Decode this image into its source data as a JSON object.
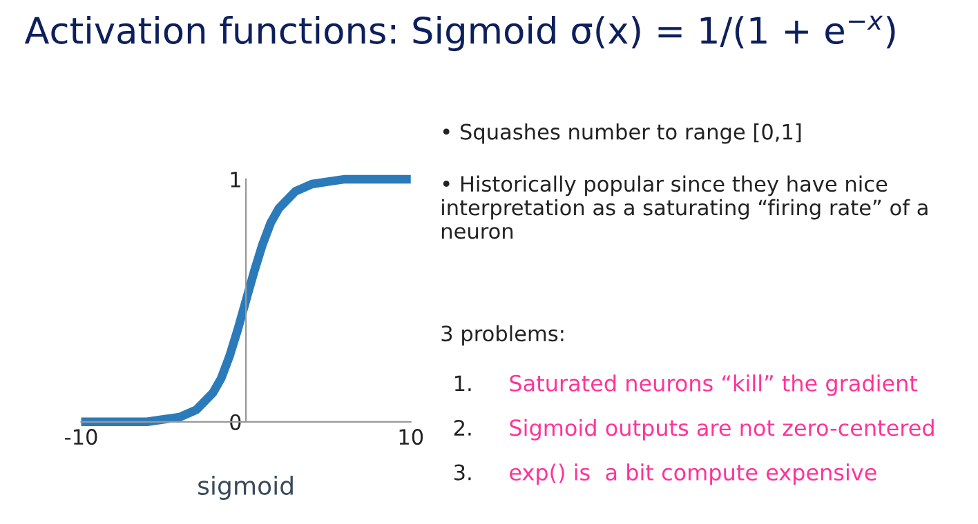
{
  "chart_data": {
    "type": "line",
    "title": "Activation functions: Sigmoid σ(x) = 1/(1 + e$^{−x}$)",
    "xlabel": "sigmoid",
    "x": [
      -10,
      -8,
      -6,
      -5,
      -4,
      -3,
      -2,
      -1.5,
      -1,
      -0.5,
      0,
      0.5,
      1,
      1.5,
      2,
      3,
      4,
      5,
      6,
      8,
      10
    ],
    "series": [
      {
        "color": "#2b7bba",
        "values": [
          0,
          0,
          0,
          0.01,
          0.02,
          0.05,
          0.12,
          0.18,
          0.27,
          0.38,
          0.5,
          0.62,
          0.73,
          0.82,
          0.88,
          0.95,
          0.98,
          0.99,
          1,
          1,
          1
        ]
      }
    ],
    "xlim": [
      -10,
      10
    ],
    "ylim": [
      0,
      1
    ],
    "xticks": [
      -10,
      10
    ],
    "yticks": [
      0,
      1
    ],
    "grid": false,
    "legend": false,
    "marker": "none",
    "line_style": "solid",
    "annotations": [
      "• Squashes number to range [0,1]",
      "• Historically popular since they have nice interpretation as a saturating “firing rate” of a neuron",
      "3 problems:",
      "1.\tSaturated neurons “kill” the gradient",
      "2.\tSigmoid outputs are not zero-centered",
      "3.\texp() is  a bit compute expensive"
    ]
  }
}
